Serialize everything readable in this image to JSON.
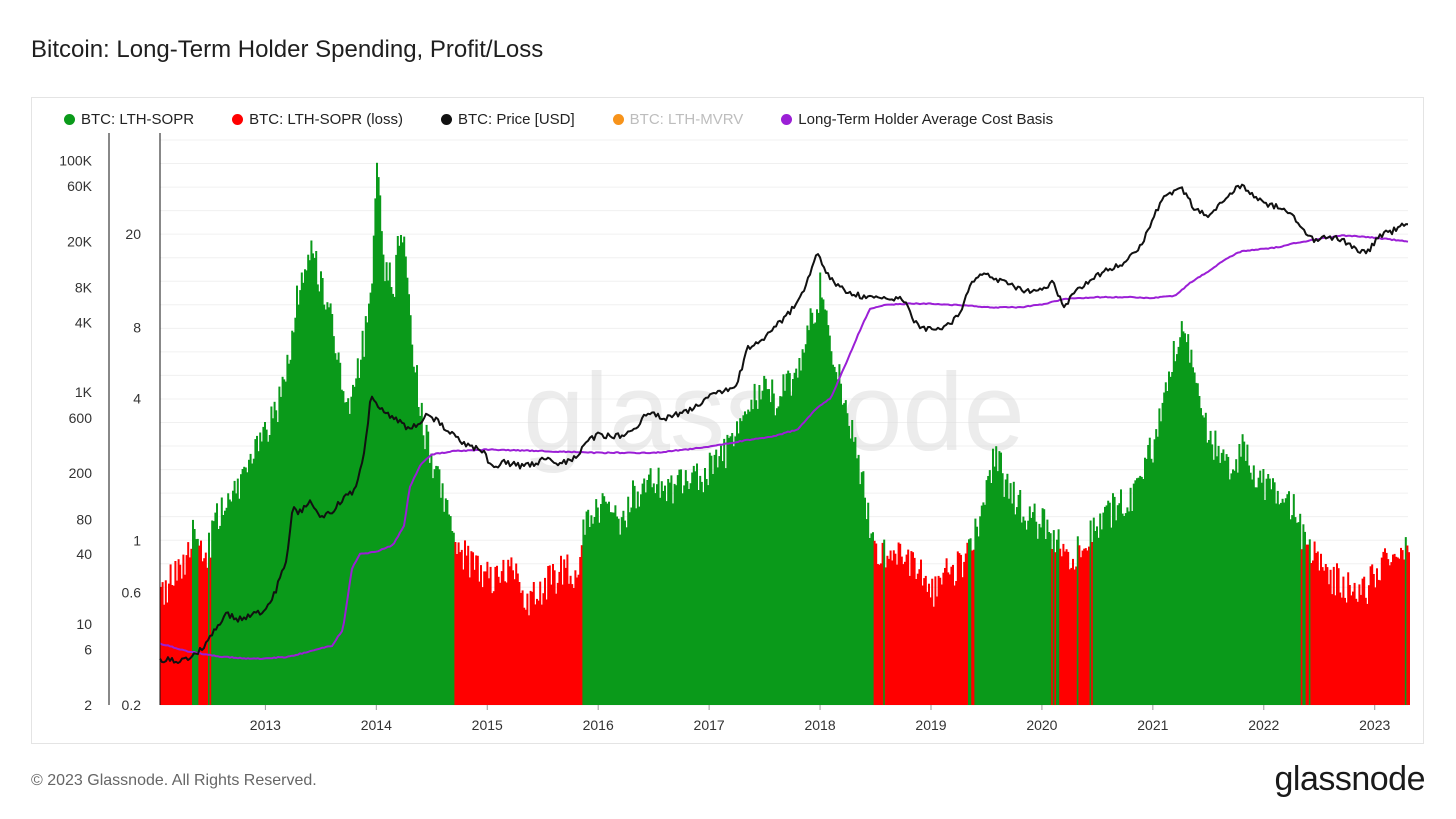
{
  "title": "Bitcoin: Long-Term Holder Spending, Profit/Loss",
  "footer": "© 2023 Glassnode. All Rights Reserved.",
  "logo_text": "glassnode",
  "watermark": "glassnode",
  "legend": [
    {
      "label": "BTC: LTH-SOPR",
      "color": "#0a9a1a",
      "active": true
    },
    {
      "label": "BTC: LTH-SOPR (loss)",
      "color": "#ff0000",
      "active": true
    },
    {
      "label": "BTC: Price [USD]",
      "color": "#111111",
      "active": true
    },
    {
      "label": "BTC: LTH-MVRV",
      "color": "#f7931a",
      "active": false
    },
    {
      "label": "Long-Term Holder Average Cost Basis",
      "color": "#9b1fd6",
      "active": true
    }
  ],
  "chart_data": {
    "type": "area",
    "x_axis": {
      "ticks": [
        "2013",
        "2014",
        "2015",
        "2016",
        "2017",
        "2018",
        "2019",
        "2020",
        "2021",
        "2022",
        "2023"
      ],
      "range": [
        2012.05,
        2023.3
      ]
    },
    "y_price": {
      "scale": "log",
      "range": [
        2,
        150000
      ],
      "ticks": [
        "2",
        "6",
        "10",
        "40",
        "80",
        "200",
        "600",
        "1K",
        "4K",
        "8K",
        "20K",
        "60K",
        "100K"
      ],
      "tick_values": [
        2,
        6,
        10,
        40,
        80,
        200,
        600,
        1000,
        4000,
        8000,
        20000,
        60000,
        100000
      ]
    },
    "y_sopr": {
      "scale": "log",
      "range": [
        0.2,
        50
      ],
      "ticks": [
        "0.2",
        "0.6",
        "1",
        "4",
        "8",
        "20"
      ],
      "tick_values": [
        0.2,
        0.6,
        1,
        4,
        8,
        20
      ]
    },
    "series": [
      {
        "name": "BTC: LTH-SOPR",
        "axis": "sopr",
        "kind": "area",
        "color": "#0a9a1a",
        "loss_color": "#ff0000",
        "points": [
          [
            2012.05,
            0.55
          ],
          [
            2012.15,
            0.7
          ],
          [
            2012.3,
            0.9
          ],
          [
            2012.35,
            1.3
          ],
          [
            2012.45,
            0.8
          ],
          [
            2012.55,
            1.2
          ],
          [
            2012.7,
            1.5
          ],
          [
            2012.85,
            2.2
          ],
          [
            2013.0,
            2.8
          ],
          [
            2013.1,
            3.6
          ],
          [
            2013.2,
            6
          ],
          [
            2013.3,
            12
          ],
          [
            2013.42,
            17
          ],
          [
            2013.5,
            12
          ],
          [
            2013.6,
            8
          ],
          [
            2013.7,
            4
          ],
          [
            2013.75,
            3.5
          ],
          [
            2013.85,
            6
          ],
          [
            2013.95,
            10
          ],
          [
            2014.0,
            45
          ],
          [
            2014.05,
            15
          ],
          [
            2014.15,
            12
          ],
          [
            2014.22,
            24
          ],
          [
            2014.3,
            8
          ],
          [
            2014.38,
            4
          ],
          [
            2014.45,
            2.5
          ],
          [
            2014.55,
            1.8
          ],
          [
            2014.65,
            1.3
          ],
          [
            2014.72,
            0.95
          ],
          [
            2014.8,
            0.85
          ],
          [
            2014.9,
            0.75
          ],
          [
            2015.0,
            0.7
          ],
          [
            2015.1,
            0.65
          ],
          [
            2015.2,
            0.8
          ],
          [
            2015.3,
            0.6
          ],
          [
            2015.4,
            0.55
          ],
          [
            2015.5,
            0.65
          ],
          [
            2015.6,
            0.7
          ],
          [
            2015.7,
            0.75
          ],
          [
            2015.82,
            0.7
          ],
          [
            2015.85,
            1.1
          ],
          [
            2015.95,
            1.3
          ],
          [
            2016.1,
            1.4
          ],
          [
            2016.2,
            1.2
          ],
          [
            2016.3,
            1.5
          ],
          [
            2016.45,
            1.9
          ],
          [
            2016.6,
            1.6
          ],
          [
            2016.75,
            1.7
          ],
          [
            2016.9,
            1.8
          ],
          [
            2017.0,
            2.0
          ],
          [
            2017.15,
            2.4
          ],
          [
            2017.3,
            3.0
          ],
          [
            2017.45,
            4.5
          ],
          [
            2017.6,
            4.0
          ],
          [
            2017.75,
            5.0
          ],
          [
            2017.9,
            8
          ],
          [
            2018.0,
            12
          ],
          [
            2018.08,
            7
          ],
          [
            2018.2,
            4
          ],
          [
            2018.3,
            2.5
          ],
          [
            2018.38,
            1.8
          ],
          [
            2018.45,
            1.1
          ],
          [
            2018.5,
            0.85
          ],
          [
            2018.6,
            0.9
          ],
          [
            2018.7,
            0.85
          ],
          [
            2018.8,
            0.8
          ],
          [
            2018.9,
            0.8
          ],
          [
            2019.0,
            0.6
          ],
          [
            2019.1,
            0.7
          ],
          [
            2019.2,
            0.75
          ],
          [
            2019.3,
            0.85
          ],
          [
            2019.4,
            1.1
          ],
          [
            2019.5,
            1.6
          ],
          [
            2019.58,
            2.4
          ],
          [
            2019.65,
            1.8
          ],
          [
            2019.75,
            1.5
          ],
          [
            2019.85,
            1.3
          ],
          [
            2019.95,
            1.2
          ],
          [
            2020.05,
            1.1
          ],
          [
            2020.15,
            1.0
          ],
          [
            2020.22,
            0.8
          ],
          [
            2020.3,
            0.85
          ],
          [
            2020.4,
            1.05
          ],
          [
            2020.5,
            1.2
          ],
          [
            2020.6,
            1.3
          ],
          [
            2020.7,
            1.4
          ],
          [
            2020.8,
            1.5
          ],
          [
            2020.9,
            1.9
          ],
          [
            2021.0,
            2.6
          ],
          [
            2021.1,
            4.5
          ],
          [
            2021.2,
            7
          ],
          [
            2021.3,
            7.5
          ],
          [
            2021.4,
            4.5
          ],
          [
            2021.5,
            2.8
          ],
          [
            2021.6,
            2.2
          ],
          [
            2021.7,
            2.0
          ],
          [
            2021.8,
            2.4
          ],
          [
            2021.9,
            2.0
          ],
          [
            2022.0,
            1.7
          ],
          [
            2022.1,
            1.5
          ],
          [
            2022.2,
            1.4
          ],
          [
            2022.28,
            1.35
          ],
          [
            2022.35,
            1.0
          ],
          [
            2022.4,
            0.9
          ],
          [
            2022.5,
            0.8
          ],
          [
            2022.6,
            0.7
          ],
          [
            2022.7,
            0.65
          ],
          [
            2022.8,
            0.6
          ],
          [
            2022.9,
            0.62
          ],
          [
            2023.0,
            0.7
          ],
          [
            2023.1,
            0.85
          ],
          [
            2023.2,
            0.95
          ],
          [
            2023.3,
            0.98
          ]
        ]
      },
      {
        "name": "BTC: Price [USD]",
        "axis": "price",
        "kind": "line",
        "color": "#111111",
        "points": [
          [
            2012.05,
            5
          ],
          [
            2012.2,
            4.8
          ],
          [
            2012.35,
            5.2
          ],
          [
            2012.45,
            6.5
          ],
          [
            2012.55,
            9
          ],
          [
            2012.65,
            12
          ],
          [
            2012.75,
            11
          ],
          [
            2012.9,
            12
          ],
          [
            2013.0,
            13.5
          ],
          [
            2013.1,
            20
          ],
          [
            2013.2,
            40
          ],
          [
            2013.25,
            110
          ],
          [
            2013.3,
            90
          ],
          [
            2013.4,
            115
          ],
          [
            2013.5,
            80
          ],
          [
            2013.6,
            95
          ],
          [
            2013.7,
            120
          ],
          [
            2013.8,
            140
          ],
          [
            2013.88,
            250
          ],
          [
            2013.95,
            900
          ],
          [
            2014.0,
            800
          ],
          [
            2014.05,
            700
          ],
          [
            2014.15,
            600
          ],
          [
            2014.3,
            480
          ],
          [
            2014.4,
            560
          ],
          [
            2014.45,
            650
          ],
          [
            2014.55,
            560
          ],
          [
            2014.65,
            460
          ],
          [
            2014.75,
            380
          ],
          [
            2014.85,
            340
          ],
          [
            2014.95,
            320
          ],
          [
            2015.05,
            220
          ],
          [
            2015.15,
            250
          ],
          [
            2015.3,
            230
          ],
          [
            2015.45,
            240
          ],
          [
            2015.55,
            280
          ],
          [
            2015.65,
            240
          ],
          [
            2015.8,
            270
          ],
          [
            2015.9,
            380
          ],
          [
            2016.0,
            430
          ],
          [
            2016.15,
            410
          ],
          [
            2016.3,
            450
          ],
          [
            2016.45,
            680
          ],
          [
            2016.6,
            600
          ],
          [
            2016.75,
            650
          ],
          [
            2016.9,
            760
          ],
          [
            2017.0,
            960
          ],
          [
            2017.15,
            1050
          ],
          [
            2017.25,
            1200
          ],
          [
            2017.35,
            2400
          ],
          [
            2017.45,
            2700
          ],
          [
            2017.55,
            3400
          ],
          [
            2017.7,
            4500
          ],
          [
            2017.85,
            7500
          ],
          [
            2017.97,
            16000
          ],
          [
            2018.05,
            11000
          ],
          [
            2018.15,
            8500
          ],
          [
            2018.3,
            7000
          ],
          [
            2018.45,
            6500
          ],
          [
            2018.6,
            6400
          ],
          [
            2018.75,
            6500
          ],
          [
            2018.85,
            4000
          ],
          [
            2018.95,
            3500
          ],
          [
            2019.1,
            3600
          ],
          [
            2019.25,
            4500
          ],
          [
            2019.35,
            8000
          ],
          [
            2019.45,
            11000
          ],
          [
            2019.55,
            10000
          ],
          [
            2019.7,
            8500
          ],
          [
            2019.85,
            7500
          ],
          [
            2019.95,
            7200
          ],
          [
            2020.1,
            9000
          ],
          [
            2020.2,
            5500
          ],
          [
            2020.3,
            7500
          ],
          [
            2020.45,
            9500
          ],
          [
            2020.6,
            11500
          ],
          [
            2020.75,
            13000
          ],
          [
            2020.9,
            19000
          ],
          [
            2021.0,
            32000
          ],
          [
            2021.1,
            47000
          ],
          [
            2021.25,
            60000
          ],
          [
            2021.38,
            38000
          ],
          [
            2021.5,
            33000
          ],
          [
            2021.65,
            47000
          ],
          [
            2021.8,
            62000
          ],
          [
            2021.9,
            50000
          ],
          [
            2022.0,
            42000
          ],
          [
            2022.15,
            40000
          ],
          [
            2022.3,
            30000
          ],
          [
            2022.45,
            20000
          ],
          [
            2022.6,
            22000
          ],
          [
            2022.75,
            19500
          ],
          [
            2022.85,
            16500
          ],
          [
            2022.95,
            16800
          ],
          [
            2023.05,
            23000
          ],
          [
            2023.15,
            24000
          ],
          [
            2023.22,
            27000
          ],
          [
            2023.3,
            29000
          ]
        ]
      },
      {
        "name": "Long-Term Holder Average Cost Basis",
        "axis": "price",
        "kind": "line",
        "color": "#9b1fd6",
        "points": [
          [
            2012.05,
            6.8
          ],
          [
            2012.3,
            5.8
          ],
          [
            2012.6,
            5.2
          ],
          [
            2012.9,
            5.0
          ],
          [
            2013.2,
            5.2
          ],
          [
            2013.4,
            5.8
          ],
          [
            2013.6,
            6.5
          ],
          [
            2013.7,
            9
          ],
          [
            2013.78,
            30
          ],
          [
            2013.85,
            40
          ],
          [
            2014.0,
            42
          ],
          [
            2014.15,
            48
          ],
          [
            2014.25,
            70
          ],
          [
            2014.3,
            150
          ],
          [
            2014.4,
            240
          ],
          [
            2014.5,
            290
          ],
          [
            2014.7,
            310
          ],
          [
            2015.0,
            320
          ],
          [
            2015.5,
            310
          ],
          [
            2016.0,
            300
          ],
          [
            2016.5,
            300
          ],
          [
            2016.8,
            320
          ],
          [
            2017.0,
            340
          ],
          [
            2017.3,
            380
          ],
          [
            2017.6,
            420
          ],
          [
            2017.8,
            480
          ],
          [
            2017.95,
            700
          ],
          [
            2018.1,
            900
          ],
          [
            2018.2,
            1500
          ],
          [
            2018.3,
            2500
          ],
          [
            2018.38,
            3800
          ],
          [
            2018.45,
            5200
          ],
          [
            2018.6,
            5700
          ],
          [
            2018.8,
            5800
          ],
          [
            2019.0,
            5800
          ],
          [
            2019.3,
            5600
          ],
          [
            2019.55,
            5400
          ],
          [
            2019.8,
            5400
          ],
          [
            2020.0,
            5700
          ],
          [
            2020.2,
            6400
          ],
          [
            2020.5,
            6600
          ],
          [
            2020.8,
            6600
          ],
          [
            2021.0,
            6500
          ],
          [
            2021.2,
            6800
          ],
          [
            2021.35,
            9000
          ],
          [
            2021.5,
            11000
          ],
          [
            2021.65,
            14000
          ],
          [
            2021.8,
            16500
          ],
          [
            2022.0,
            17200
          ],
          [
            2022.15,
            18000
          ],
          [
            2022.3,
            19500
          ],
          [
            2022.5,
            21000
          ],
          [
            2022.7,
            22500
          ],
          [
            2022.9,
            22000
          ],
          [
            2023.1,
            21000
          ],
          [
            2023.3,
            20000
          ]
        ]
      }
    ]
  }
}
